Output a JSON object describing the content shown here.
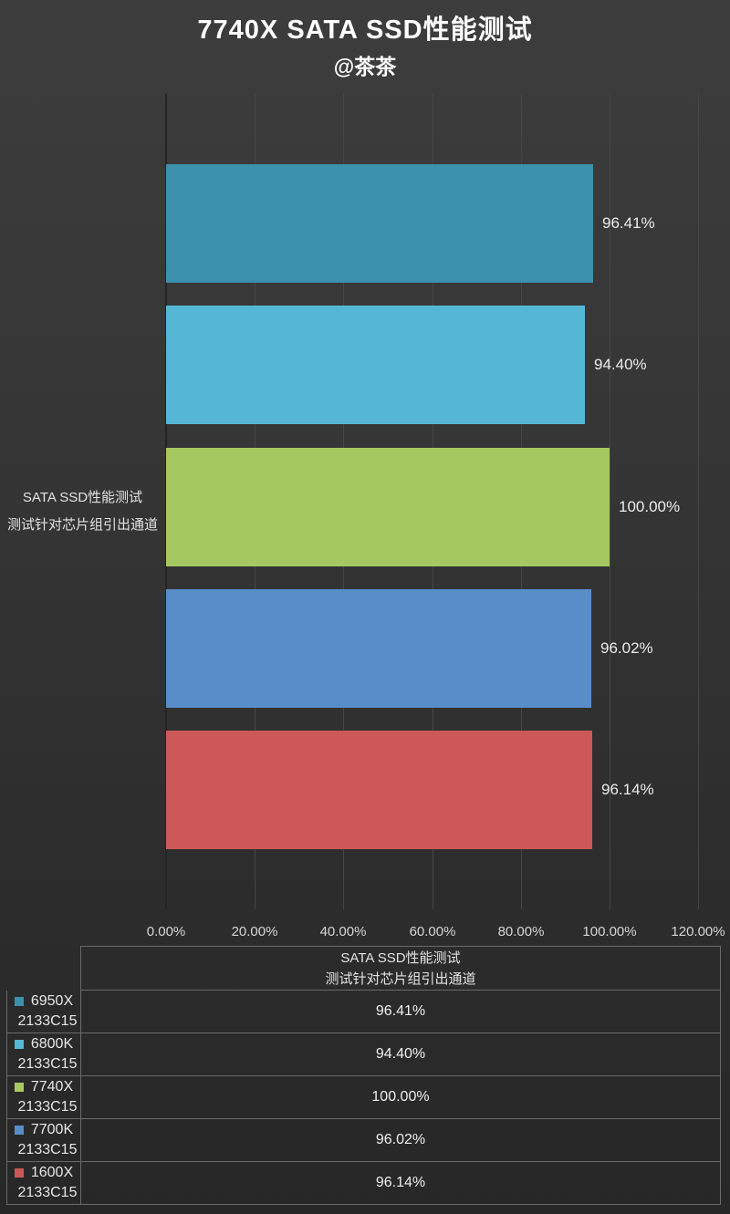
{
  "page": {
    "title": "7740X SATA SSD性能测试",
    "subtitle": "@茶茶"
  },
  "chart_data": {
    "type": "bar",
    "orientation": "horizontal",
    "title": "7740X SATA SSD性能测试",
    "subtitle": "@茶茶",
    "category_label_lines": [
      "SATA SSD性能测试",
      "测试针对芯片组引出通道"
    ],
    "table_header_lines": [
      "SATA SSD性能测试",
      "测试针对芯片组引出通道"
    ],
    "xlim": [
      0,
      120
    ],
    "grid": true,
    "legend_position": "bottom-table",
    "x_ticks": [
      "0.00%",
      "20.00%",
      "40.00%",
      "60.00%",
      "80.00%",
      "100.00%",
      "120.00%"
    ],
    "series": [
      {
        "name": "6950X 2133C15",
        "legend_lines": [
          "6950X",
          "2133C15"
        ],
        "value": 96.41,
        "value_label": "96.41%",
        "color": "#3b91ab"
      },
      {
        "name": "6800K 2133C15",
        "legend_lines": [
          "6800K",
          "2133C15"
        ],
        "value": 94.4,
        "value_label": "94.40%",
        "color": "#55b7d5"
      },
      {
        "name": "7740X 2133C15",
        "legend_lines": [
          "7740X",
          "2133C15"
        ],
        "value": 100.0,
        "value_label": "100.00%",
        "color": "#a6c860"
      },
      {
        "name": "7700K 2133C15",
        "legend_lines": [
          "7700K",
          "2133C15"
        ],
        "value": 96.02,
        "value_label": "96.02%",
        "color": "#588dca"
      },
      {
        "name": "1600X 2133C15",
        "legend_lines": [
          "1600X",
          "2133C15"
        ],
        "value": 96.14,
        "value_label": "96.14%",
        "color": "#cc5857"
      }
    ]
  },
  "colors": {
    "background_top": "#3d3d3d",
    "background_bottom": "#272727",
    "grid_line": "#464646",
    "axis_line": "#242424",
    "table_border": "#6a6a6a",
    "text": "#e6e6e6"
  }
}
